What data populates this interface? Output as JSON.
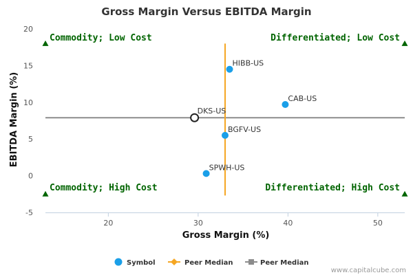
{
  "chart_data": {
    "type": "scatter",
    "title": "Gross Margin Versus EBITDA Margin",
    "xlabel": "Gross Margin (%)",
    "ylabel": "EBITDA Margin (%)",
    "xlim": [
      13,
      53
    ],
    "ylim": [
      -5,
      20
    ],
    "xticks": [
      20,
      30,
      40,
      50
    ],
    "yticks": [
      -5,
      0,
      5,
      10,
      15,
      20
    ],
    "grid": false,
    "legend_position": "bottom",
    "series": [
      {
        "name": "Symbol",
        "points": [
          {
            "label": "HIBB-US",
            "x": 33.5,
            "y": 14.5
          },
          {
            "label": "CAB-US",
            "x": 39.7,
            "y": 9.7
          },
          {
            "label": "BGFV-US",
            "x": 33.0,
            "y": 5.5
          },
          {
            "label": "SPWH-US",
            "x": 30.9,
            "y": 0.3
          }
        ]
      }
    ],
    "highlight": {
      "label": "DKS-US",
      "x": 29.6,
      "y": 7.9
    },
    "peer_median": {
      "x": 33.0,
      "y": 7.9,
      "x_line_range": [
        -2.7,
        18
      ],
      "y_line_range": [
        13,
        53
      ]
    },
    "quadrants": [
      {
        "label": "Commodity; Low Cost",
        "anchor": "top-left"
      },
      {
        "label": "Differentiated; Low Cost",
        "anchor": "top-right"
      },
      {
        "label": "Commodity; High Cost",
        "anchor": "bottom-left"
      },
      {
        "label": "Differentiated; High Cost",
        "anchor": "bottom-right"
      }
    ],
    "quadrant_markers": [
      {
        "x": 13,
        "y": 18
      },
      {
        "x": 53,
        "y": 18
      },
      {
        "x": 13,
        "y": -2.5
      },
      {
        "x": 53,
        "y": -2.5
      }
    ],
    "legend": [
      {
        "label": "Symbol",
        "marker": "circle"
      },
      {
        "label": "Peer Median",
        "marker": "line-diamond"
      },
      {
        "label": "Peer Median",
        "marker": "line-square"
      }
    ],
    "colors": {
      "points": "#1a9fe8",
      "highlight_stroke": "#222222",
      "median_vertical": "#f5a623",
      "median_horizontal": "#8c8c8c",
      "quadrant_text": "#006400",
      "marker": "#006400",
      "axis": "#c0d0e0"
    }
  },
  "footer": {
    "credit": "www.capitalcube.com"
  }
}
